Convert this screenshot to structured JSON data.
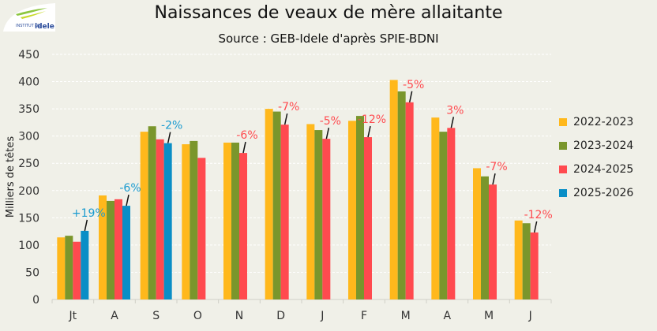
{
  "chart_data": {
    "type": "bar",
    "title": "Naissances de veaux de mère allaitante",
    "subtitle": "Source : GEB-Idele d'après SPIE-BDNI",
    "ylabel": "Milliers de têtes",
    "xlabel": "",
    "ylim": [
      0,
      450
    ],
    "yticks": [
      0,
      50,
      100,
      150,
      200,
      250,
      300,
      350,
      400,
      450
    ],
    "grid": true,
    "legend_position": "right",
    "categories": [
      "Jt",
      "A",
      "S",
      "O",
      "N",
      "D",
      "J",
      "F",
      "M",
      "A",
      "M",
      "J"
    ],
    "series": [
      {
        "name": "2022-2023",
        "color": "#ffb81c",
        "values": [
          114,
          191,
          308,
          285,
          288,
          350,
          322,
          328,
          403,
          334,
          241,
          145
        ]
      },
      {
        "name": "2023-2024",
        "color": "#7a962c",
        "values": [
          117,
          181,
          318,
          291,
          288,
          345,
          311,
          337,
          382,
          308,
          226,
          140
        ]
      },
      {
        "name": "2024-2025",
        "color": "#ff4a4f",
        "values": [
          106,
          184,
          294,
          260,
          269,
          321,
          295,
          298,
          362,
          315,
          211,
          123
        ]
      },
      {
        "name": "2025-2026",
        "color": "#0a8ec6",
        "values": [
          126,
          172,
          287,
          null,
          null,
          null,
          null,
          null,
          null,
          null,
          null,
          null
        ]
      }
    ],
    "annotations": [
      {
        "category_index": 0,
        "series_index": 3,
        "text": "+19%",
        "color": "#1a9bd0"
      },
      {
        "category_index": 1,
        "series_index": 3,
        "text": "-6%",
        "color": "#1a9bd0"
      },
      {
        "category_index": 2,
        "series_index": 3,
        "text": "-2%",
        "color": "#1a9bd0"
      },
      {
        "category_index": 4,
        "series_index": 2,
        "text": "-6%",
        "color": "#ff4a4f"
      },
      {
        "category_index": 5,
        "series_index": 2,
        "text": "-7%",
        "color": "#ff4a4f"
      },
      {
        "category_index": 6,
        "series_index": 2,
        "text": "-5%",
        "color": "#ff4a4f"
      },
      {
        "category_index": 7,
        "series_index": 2,
        "text": "-12%",
        "color": "#ff4a4f"
      },
      {
        "category_index": 8,
        "series_index": 2,
        "text": "-5%",
        "color": "#ff4a4f"
      },
      {
        "category_index": 9,
        "series_index": 2,
        "text": "3%",
        "color": "#ff4a4f"
      },
      {
        "category_index": 10,
        "series_index": 2,
        "text": "-7%",
        "color": "#ff4a4f"
      },
      {
        "category_index": 11,
        "series_index": 2,
        "text": "-12%",
        "color": "#ff4a4f"
      }
    ]
  },
  "logo": {
    "text": "INSTITUT DE L'ÉLEVAGE idele"
  }
}
